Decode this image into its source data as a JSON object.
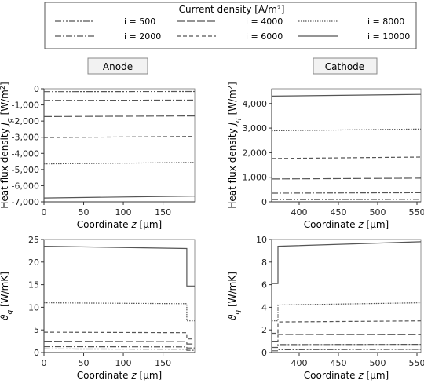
{
  "legend": {
    "title": "Current density [A/m²]",
    "entries": [
      {
        "label": "i = 500",
        "dash": "8,2,2,2,2,2"
      },
      {
        "label": "i = 4000",
        "dash": "10,3"
      },
      {
        "label": "i = 8000",
        "dash": "1.5,1.5"
      },
      {
        "label": "i = 2000",
        "dash": "8,2,2,2"
      },
      {
        "label": "i = 6000",
        "dash": "5,3"
      },
      {
        "label": "i = 10000",
        "dash": ""
      }
    ]
  },
  "tags": {
    "anode": "Anode",
    "cathode": "Cathode"
  },
  "colors": {
    "line": "#555555",
    "axis": "#333333",
    "frame": "#777777"
  },
  "chart_data": [
    {
      "type": "line",
      "id": "anode-heat-flux",
      "ylabel": "Heat flux density J_q [W/m²]",
      "xlabel": "Coordinate z [μm]",
      "xlim": [
        0,
        190
      ],
      "ylim": [
        -7000,
        0
      ],
      "xticks": [
        0,
        50,
        100,
        150
      ],
      "yticks": [
        -7000,
        -6000,
        -5000,
        -4000,
        -3000,
        -2000,
        -1000,
        0
      ],
      "ytick_labels": [
        "-7,000",
        "-6,000",
        "-5,000",
        "-4,000",
        "-3,000",
        "-2,000",
        "-1,000",
        "0"
      ],
      "series": [
        {
          "name": "i = 500",
          "x": [
            0,
            190
          ],
          "y": [
            -180,
            -170
          ]
        },
        {
          "name": "i = 2000",
          "x": [
            0,
            190
          ],
          "y": [
            -720,
            -700
          ]
        },
        {
          "name": "i = 4000",
          "x": [
            0,
            190
          ],
          "y": [
            -1720,
            -1680
          ]
        },
        {
          "name": "i = 6000",
          "x": [
            0,
            190
          ],
          "y": [
            -3020,
            -2950
          ]
        },
        {
          "name": "i = 8000",
          "x": [
            0,
            190
          ],
          "y": [
            -4650,
            -4560
          ]
        },
        {
          "name": "i = 10000",
          "x": [
            0,
            190
          ],
          "y": [
            -6760,
            -6640
          ]
        }
      ]
    },
    {
      "type": "line",
      "id": "cathode-heat-flux",
      "ylabel": "Heat flux density J_q [W/m²]",
      "xlabel": "Coordinate z [μm]",
      "xlim": [
        365,
        555
      ],
      "ylim": [
        0,
        4600
      ],
      "xticks": [
        400,
        450,
        500,
        550
      ],
      "yticks": [
        0,
        1000,
        2000,
        3000,
        4000
      ],
      "ytick_labels": [
        "0",
        "1,000",
        "2,000",
        "3,000",
        "4,000"
      ],
      "series": [
        {
          "name": "i = 500",
          "x": [
            365,
            555
          ],
          "y": [
            90,
            100
          ]
        },
        {
          "name": "i = 2000",
          "x": [
            365,
            555
          ],
          "y": [
            350,
            370
          ]
        },
        {
          "name": "i = 4000",
          "x": [
            365,
            555
          ],
          "y": [
            930,
            960
          ]
        },
        {
          "name": "i = 6000",
          "x": [
            365,
            555
          ],
          "y": [
            1760,
            1820
          ]
        },
        {
          "name": "i = 8000",
          "x": [
            365,
            555
          ],
          "y": [
            2890,
            2960
          ]
        },
        {
          "name": "i = 10000",
          "x": [
            365,
            555
          ],
          "y": [
            4300,
            4370
          ]
        }
      ]
    },
    {
      "type": "line",
      "id": "anode-thermal-conductivity",
      "ylabel": "ϑ_q [W/mK]",
      "xlabel": "Coordinate z [μm]",
      "xlim": [
        0,
        190
      ],
      "ylim": [
        0,
        25
      ],
      "xticks": [
        0,
        50,
        100,
        150
      ],
      "yticks": [
        0,
        5,
        10,
        15,
        20,
        25
      ],
      "ytick_labels": [
        "0",
        "5",
        "10",
        "15",
        "20",
        "25"
      ],
      "series": [
        {
          "name": "i = 500",
          "x": [
            0,
            180,
            180,
            190
          ],
          "y": [
            0.8,
            0.75,
            0.5,
            0.5
          ]
        },
        {
          "name": "i = 2000",
          "x": [
            0,
            180,
            180,
            190
          ],
          "y": [
            1.3,
            1.25,
            1.0,
            1.0
          ]
        },
        {
          "name": "i = 4000",
          "x": [
            0,
            180,
            180,
            190
          ],
          "y": [
            2.5,
            2.4,
            1.9,
            1.9
          ]
        },
        {
          "name": "i = 6000",
          "x": [
            0,
            180,
            180,
            190
          ],
          "y": [
            4.5,
            4.4,
            3.0,
            3.0
          ]
        },
        {
          "name": "i = 8000",
          "x": [
            0,
            180,
            180,
            190
          ],
          "y": [
            11.0,
            10.8,
            7.0,
            7.0
          ]
        },
        {
          "name": "i = 10000",
          "x": [
            0,
            180,
            180,
            190
          ],
          "y": [
            23.5,
            23.0,
            14.7,
            14.7
          ]
        }
      ]
    },
    {
      "type": "line",
      "id": "cathode-thermal-conductivity",
      "ylabel": "ϑ_q [W/mK]",
      "xlabel": "Coordinate z [μm]",
      "xlim": [
        365,
        555
      ],
      "ylim": [
        0,
        10
      ],
      "xticks": [
        400,
        450,
        500,
        550
      ],
      "yticks": [
        0,
        2,
        4,
        6,
        8,
        10
      ],
      "ytick_labels": [
        "0",
        "2",
        "4",
        "6",
        "8",
        "10"
      ],
      "series": [
        {
          "name": "i = 500",
          "x": [
            365,
            373,
            373,
            555
          ],
          "y": [
            0.15,
            0.15,
            0.25,
            0.28
          ]
        },
        {
          "name": "i = 2000",
          "x": [
            365,
            373,
            373,
            555
          ],
          "y": [
            0.45,
            0.45,
            0.7,
            0.72
          ]
        },
        {
          "name": "i = 4000",
          "x": [
            365,
            373,
            373,
            555
          ],
          "y": [
            1.0,
            1.0,
            1.6,
            1.62
          ]
        },
        {
          "name": "i = 6000",
          "x": [
            365,
            373,
            373,
            555
          ],
          "y": [
            1.7,
            1.7,
            2.7,
            2.8
          ]
        },
        {
          "name": "i = 8000",
          "x": [
            365,
            373,
            373,
            555
          ],
          "y": [
            2.8,
            2.8,
            4.2,
            4.4
          ]
        },
        {
          "name": "i = 10000",
          "x": [
            365,
            373,
            373,
            555
          ],
          "y": [
            6.1,
            6.1,
            9.4,
            9.8
          ]
        }
      ]
    }
  ]
}
